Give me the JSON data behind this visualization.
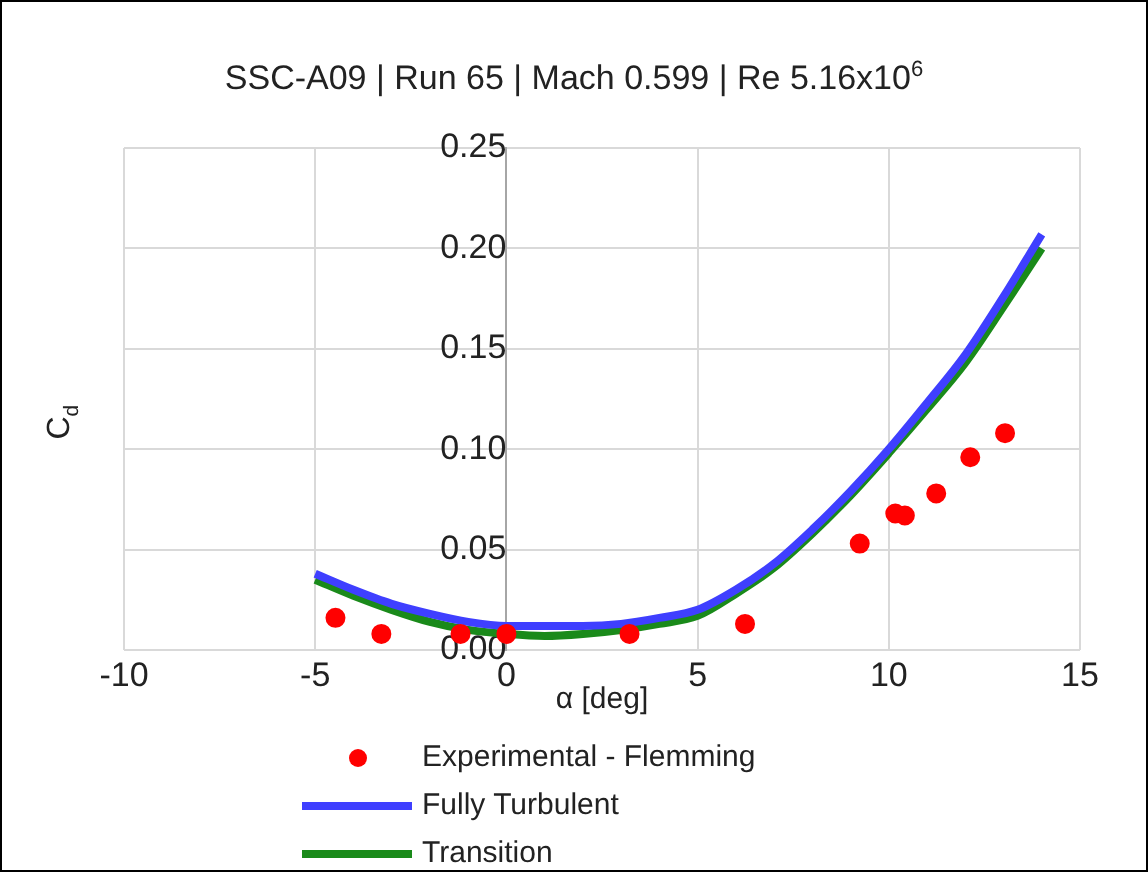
{
  "chart_data": {
    "type": "line",
    "title": "SSC-A09 | Run 65 | Mach 0.599 | Re 5.16x10$^{6}$",
    "xlabel": "α [deg]",
    "ylabel": "C$_{d}$",
    "xlim": [
      -10,
      15
    ],
    "xticks": [
      -10,
      -5,
      0,
      5,
      10,
      15
    ],
    "ylim": [
      0,
      0.25
    ],
    "yticks": [
      {
        "value": 0,
        "label": "0.00"
      },
      {
        "value": 0.05,
        "label": "0.05"
      },
      {
        "value": 0.1,
        "label": "0.10"
      },
      {
        "value": 0.15,
        "label": "0.15"
      },
      {
        "value": 0.2,
        "label": "0.20"
      },
      {
        "value": 0.25,
        "label": "0.25"
      }
    ],
    "grid": true,
    "legend": "bottom",
    "series": [
      {
        "name": "Experimental - Flemming",
        "type": "scatter",
        "marker": "circle",
        "color": "#ff0000",
        "x": [
          -4.47,
          -3.27,
          -1.2,
          0,
          3.22,
          6.24,
          9.24,
          10.17,
          10.42,
          11.24,
          12.13,
          13.04
        ],
        "values": [
          0.016,
          0.008,
          0.008,
          0.008,
          0.008,
          0.013,
          0.053,
          0.068,
          0.067,
          0.078,
          0.096,
          0.108
        ]
      },
      {
        "name": "Fully Turbulent",
        "marker": "none",
        "color": "#3f3fff",
        "x": [
          -5,
          -4,
          -3,
          -2,
          -1,
          0,
          1,
          2,
          3,
          4,
          5,
          6,
          7,
          8,
          9,
          10,
          11,
          12,
          13,
          14
        ],
        "values": [
          0.038,
          0.03,
          0.023,
          0.018,
          0.014,
          0.012,
          0.012,
          0.012,
          0.013,
          0.016,
          0.02,
          0.03,
          0.043,
          0.06,
          0.079,
          0.1,
          0.123,
          0.147,
          0.176,
          0.207
        ]
      },
      {
        "name": "Transition",
        "marker": "none",
        "color": "#1a8a1a",
        "x": [
          -5,
          -4,
          -3,
          -2,
          -1,
          0,
          1,
          2,
          3,
          4,
          5,
          6,
          7,
          8,
          9,
          10,
          11,
          12,
          13,
          14
        ],
        "values": [
          0.035,
          0.027,
          0.02,
          0.014,
          0.01,
          0.008,
          0.007,
          0.008,
          0.01,
          0.013,
          0.017,
          0.028,
          0.041,
          0.058,
          0.077,
          0.098,
          0.12,
          0.143,
          0.171,
          0.2
        ]
      }
    ]
  }
}
